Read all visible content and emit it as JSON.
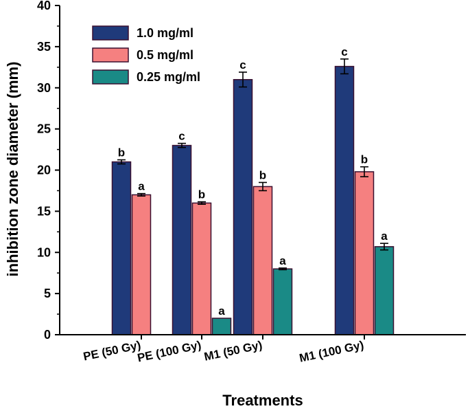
{
  "chart_data": {
    "type": "bar",
    "title": "",
    "xlabel": "Treatments",
    "ylabel": "inhibition zone diameter (mm)",
    "ylim": [
      0,
      40
    ],
    "yticks": [
      0,
      5,
      10,
      15,
      20,
      25,
      30,
      35,
      40
    ],
    "categories": [
      "PE (50 Gy)",
      "PE (100 Gy)",
      "M1 (50 Gy)",
      "M1 (100 Gy)"
    ],
    "legend_position": "top-left",
    "grid": false,
    "series": [
      {
        "name": "1.0 mg/ml",
        "color": "#1f3a7a",
        "values": [
          21,
          23,
          31,
          32.6
        ],
        "errors": [
          0.25,
          0.25,
          0.9,
          0.9
        ],
        "letters": [
          "b",
          "c",
          "c",
          "c"
        ]
      },
      {
        "name": "0.5 mg/ml",
        "color": "#f58080",
        "values": [
          17,
          16,
          18,
          19.8
        ],
        "errors": [
          0.15,
          0.15,
          0.5,
          0.6
        ],
        "letters": [
          "a",
          "b",
          "b",
          "b"
        ]
      },
      {
        "name": "0.25 mg/ml",
        "color": "#1a8a86",
        "values": [
          0,
          2,
          8,
          10.7
        ],
        "errors": [
          0,
          0,
          0.1,
          0.4
        ],
        "letters": [
          "",
          "a",
          "a",
          "a"
        ]
      }
    ]
  }
}
